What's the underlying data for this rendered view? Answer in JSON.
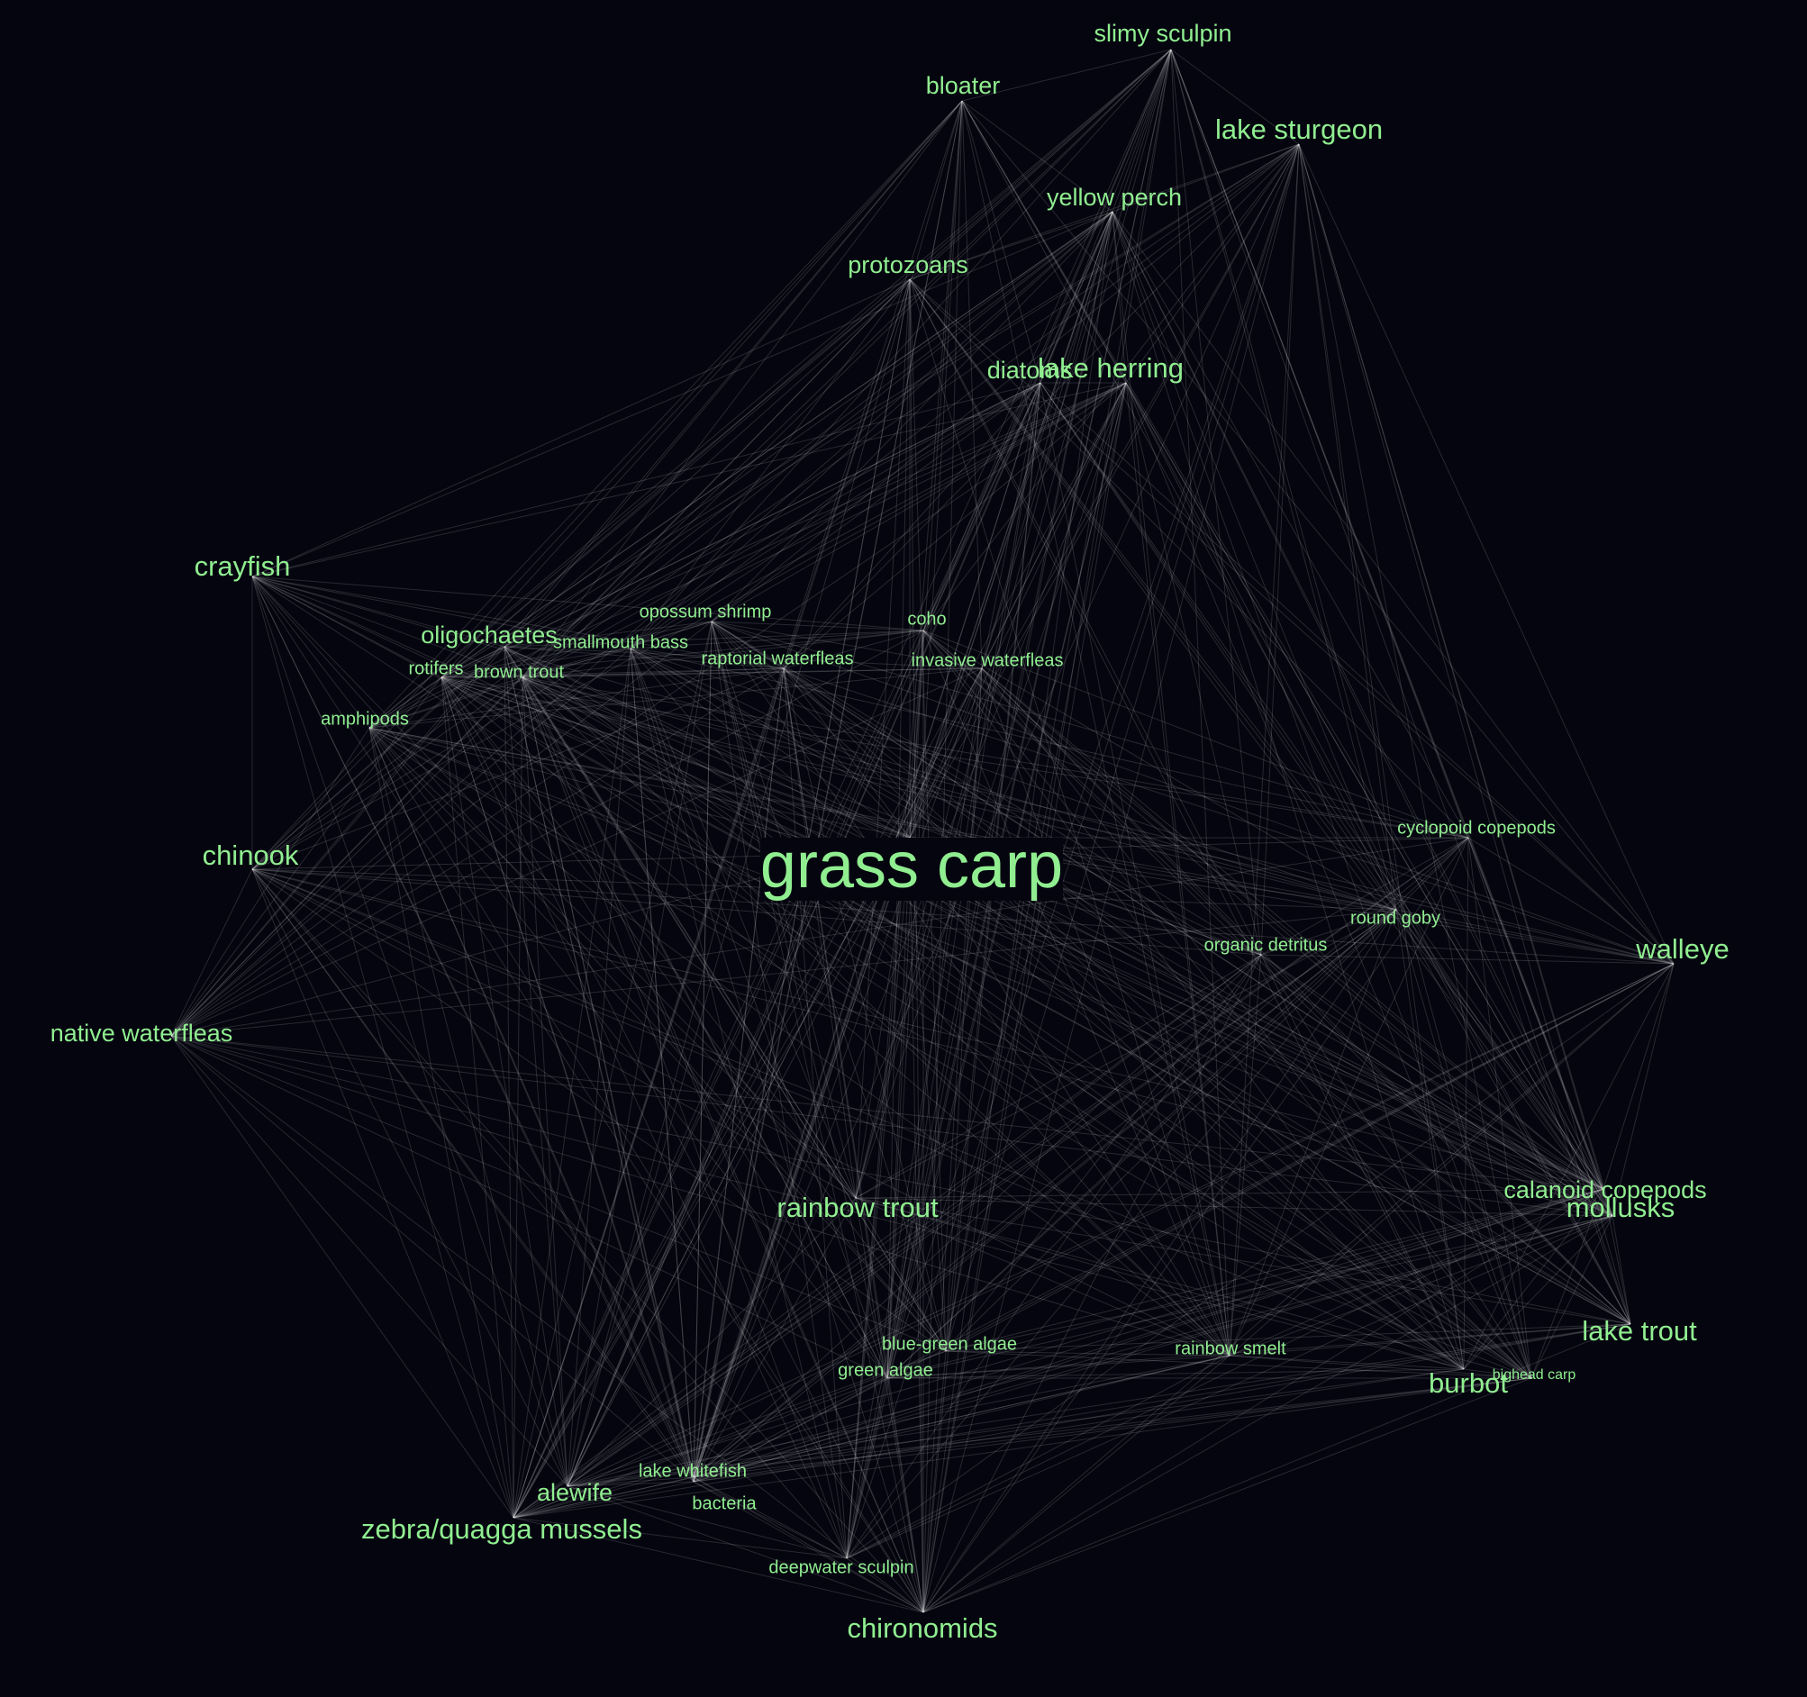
{
  "colors": {
    "background": "#05050f",
    "label": "#90ee90",
    "edge": "#ffffff"
  },
  "nodes": [
    {
      "id": "grass-carp",
      "label": "grass carp",
      "tier": "xl"
    },
    {
      "id": "slimy-sculpin",
      "label": "slimy sculpin",
      "tier": "m"
    },
    {
      "id": "bloater",
      "label": "bloater",
      "tier": "m"
    },
    {
      "id": "lake-sturgeon",
      "label": "lake sturgeon",
      "tier": "l"
    },
    {
      "id": "yellow-perch",
      "label": "yellow perch",
      "tier": "m"
    },
    {
      "id": "protozoans",
      "label": "protozoans",
      "tier": "m"
    },
    {
      "id": "diatoms",
      "label": "diatoms",
      "tier": "m"
    },
    {
      "id": "lake-herring",
      "label": "lake herring",
      "tier": "l"
    },
    {
      "id": "crayfish",
      "label": "crayfish",
      "tier": "l"
    },
    {
      "id": "opossum-shrimp",
      "label": "opossum shrimp",
      "tier": "s"
    },
    {
      "id": "coho",
      "label": "coho",
      "tier": "s"
    },
    {
      "id": "oligochaetes",
      "label": "oligochaetes",
      "tier": "m"
    },
    {
      "id": "smallmouth-bass",
      "label": "smallmouth bass",
      "tier": "s"
    },
    {
      "id": "raptorial-waterfleas",
      "label": "raptorial waterfleas",
      "tier": "s"
    },
    {
      "id": "invasive-waterfleas",
      "label": "invasive waterfleas",
      "tier": "s"
    },
    {
      "id": "rotifers",
      "label": "rotifers",
      "tier": "s"
    },
    {
      "id": "brown-trout",
      "label": "brown trout",
      "tier": "s"
    },
    {
      "id": "amphipods",
      "label": "amphipods",
      "tier": "s"
    },
    {
      "id": "cyclopoid-copepods",
      "label": "cyclopoid copepods",
      "tier": "s"
    },
    {
      "id": "chinook",
      "label": "chinook",
      "tier": "l"
    },
    {
      "id": "round-goby",
      "label": "round goby",
      "tier": "s"
    },
    {
      "id": "walleye",
      "label": "walleye",
      "tier": "l"
    },
    {
      "id": "organic-detritus",
      "label": "organic detritus",
      "tier": "s"
    },
    {
      "id": "native-waterfleas",
      "label": "native waterfleas",
      "tier": "m"
    },
    {
      "id": "calanoid-copepods",
      "label": "calanoid copepods",
      "tier": "m"
    },
    {
      "id": "mollusks",
      "label": "mollusks",
      "tier": "l"
    },
    {
      "id": "rainbow-trout",
      "label": "rainbow trout",
      "tier": "l"
    },
    {
      "id": "lake-trout",
      "label": "lake trout",
      "tier": "l"
    },
    {
      "id": "blue-green-algae",
      "label": "blue-green algae",
      "tier": "s"
    },
    {
      "id": "rainbow-smelt",
      "label": "rainbow smelt",
      "tier": "s"
    },
    {
      "id": "green-algae",
      "label": "green algae",
      "tier": "s"
    },
    {
      "id": "burbot",
      "label": "burbot",
      "tier": "l"
    },
    {
      "id": "bighead-carp",
      "label": "bighead carp",
      "tier": "xs"
    },
    {
      "id": "lake-whitefish",
      "label": "lake whitefish",
      "tier": "s"
    },
    {
      "id": "alewife",
      "label": "alewife",
      "tier": "m"
    },
    {
      "id": "bacteria",
      "label": "bacteria",
      "tier": "s"
    },
    {
      "id": "zebra-quagga-mussels",
      "label": "zebra/quagga mussels",
      "tier": "l"
    },
    {
      "id": "deepwater-sculpin",
      "label": "deepwater sculpin",
      "tier": "s"
    },
    {
      "id": "chironomids",
      "label": "chironomids",
      "tier": "l"
    }
  ]
}
